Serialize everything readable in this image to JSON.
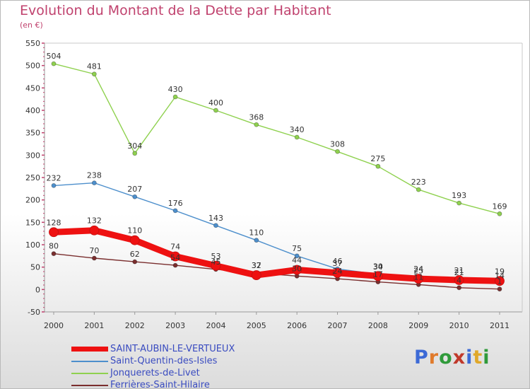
{
  "header": {
    "title": "Evolution du Montant de la Dette par Habitant",
    "unit": "(en €)"
  },
  "logo": {
    "text": "Proxiti",
    "letter_colors": [
      "#3c6ad6",
      "#e07a2b",
      "#2f9a3a",
      "#c0392b",
      "#3c6ad6",
      "#e0a82b",
      "#2f9a3a"
    ]
  },
  "chart_data": {
    "type": "line",
    "title": "Evolution du Montant de la Dette par Habitant",
    "ylabel": "(en €)",
    "xlabel": "",
    "x": [
      "2000",
      "2001",
      "2002",
      "2003",
      "2004",
      "2005",
      "2006",
      "2007",
      "2008",
      "2009",
      "2010",
      "2011"
    ],
    "ylim": [
      -50,
      550
    ],
    "yticks": [
      -50,
      0,
      50,
      100,
      150,
      200,
      250,
      300,
      350,
      400,
      450,
      500,
      550
    ],
    "grid": false,
    "legend": "bottom-left",
    "series": [
      {
        "name": "SAINT-AUBIN-LE-VERTUEUX",
        "color": "#ee1111",
        "emphasis": true,
        "values": [
          128,
          132,
          110,
          74,
          53,
          32,
          44,
          37,
          30,
          24,
          21,
          19
        ]
      },
      {
        "name": "Saint-Quentin-des-Isles",
        "color": "#4d8fcc",
        "values": [
          232,
          238,
          207,
          176,
          143,
          110,
          75,
          46,
          34,
          25,
          21,
          14
        ]
      },
      {
        "name": "Jonquerets-de-Livet",
        "color": "#8fd14f",
        "values": [
          504,
          481,
          304,
          430,
          400,
          368,
          340,
          308,
          275,
          223,
          193,
          169
        ]
      },
      {
        "name": "Ferrières-Saint-Hilaire",
        "color": "#7a2e2e",
        "values": [
          80,
          70,
          62,
          54,
          45,
          37,
          30,
          24,
          17,
          11,
          4,
          1
        ]
      }
    ]
  }
}
